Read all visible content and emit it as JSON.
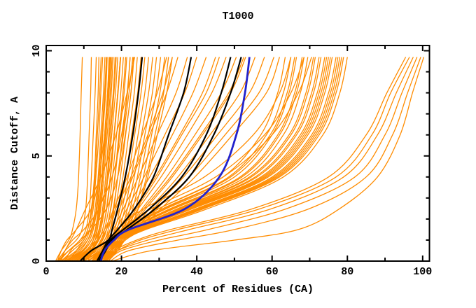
{
  "chart_data": {
    "type": "line",
    "title": "T1000",
    "xlabel": "Percent of Residues (CA)",
    "ylabel": "Distance Cutoff, A",
    "xlim": [
      0,
      101.8
    ],
    "ylim": [
      0,
      10.25
    ],
    "grid": false,
    "legend": "none",
    "frame": true,
    "x_major_ticks": [
      0,
      20,
      40,
      60,
      80,
      100
    ],
    "x_minor_ticks": [
      10,
      30,
      50,
      70,
      90
    ],
    "x_tick_labels": [
      "0",
      "20",
      "40",
      "60",
      "80",
      "100"
    ],
    "y_major_ticks": [
      0,
      5,
      10
    ],
    "y_minor_ticks": [
      1,
      2,
      3,
      4,
      6,
      7,
      8,
      9
    ],
    "y_tick_labels": [
      "0",
      "5",
      "10"
    ],
    "colors": {
      "ensemble": "#ff8c00",
      "highlight": "#000000",
      "reference": "#2222cc",
      "frame": "#000000",
      "background": "#ffffff"
    },
    "cutoff_grid": [
      0,
      0.5,
      1,
      1.5,
      2.5,
      4,
      6,
      8,
      9.7
    ],
    "series": {
      "ensemble_name": "model ensemble (percent of CA residues under cutoff)",
      "ensemble": [
        [
          2.5,
          4,
          6,
          7,
          8,
          8.6,
          9,
          9.3,
          9.6
        ],
        [
          3,
          5,
          8,
          9.5,
          10.5,
          11,
          11.4,
          11.8,
          12
        ],
        [
          3.5,
          6,
          9,
          10.5,
          11.5,
          12,
          12.5,
          13,
          13.3
        ],
        [
          4,
          7,
          10,
          11,
          12,
          12.8,
          13.3,
          13.8,
          14
        ],
        [
          4,
          8,
          10.5,
          11.5,
          12.5,
          13.2,
          14,
          14.5,
          15
        ],
        [
          5,
          9,
          11,
          12,
          13,
          13.8,
          14.5,
          15.2,
          15.6
        ],
        [
          5,
          9.5,
          11.5,
          12.5,
          13.5,
          14.3,
          15,
          15.8,
          16.2
        ],
        [
          6,
          10,
          12,
          13,
          14,
          14.8,
          15.5,
          16.3,
          16.8
        ],
        [
          6,
          10.5,
          12.5,
          13.5,
          14.5,
          15.3,
          16.2,
          17,
          17.5
        ],
        [
          7,
          11,
          13,
          14,
          15,
          15.8,
          16.8,
          17.8,
          18.3
        ],
        [
          7,
          11.5,
          13.5,
          14.5,
          15.5,
          16.4,
          17.4,
          18.4,
          19
        ],
        [
          8,
          12,
          14,
          15,
          16,
          17,
          18,
          19,
          19.7
        ],
        [
          8,
          12.5,
          14.5,
          15.5,
          16.6,
          17.6,
          18.7,
          19.8,
          20.5
        ],
        [
          9,
          13,
          15,
          16,
          17.2,
          18.3,
          19.5,
          20.7,
          21.4
        ],
        [
          9,
          13.5,
          15.5,
          16.5,
          17.8,
          19,
          20.3,
          21.6,
          22.3
        ],
        [
          10,
          14,
          16,
          17,
          18.4,
          19.7,
          21.1,
          22.5,
          23.2
        ],
        [
          10,
          14.5,
          16.5,
          17.6,
          19,
          20.4,
          21.9,
          23.4,
          24.2
        ],
        [
          11,
          15,
          17,
          18.2,
          19.6,
          21.1,
          22.7,
          24.3,
          25.2
        ],
        [
          11,
          15.5,
          17.5,
          18.8,
          20.2,
          21.8,
          23.5,
          25.2,
          26.2
        ],
        [
          12,
          16,
          18,
          19.4,
          20.9,
          22.6,
          24.4,
          26.2,
          27.2
        ],
        [
          12,
          16.5,
          18.5,
          20,
          21.6,
          23.4,
          25.3,
          27.2,
          28.3
        ],
        [
          13,
          17,
          19,
          20.6,
          22.3,
          24.2,
          26.2,
          28.2,
          29.3
        ],
        [
          13,
          17.5,
          19.5,
          21.2,
          23,
          25,
          27.1,
          29.2,
          30.4
        ],
        [
          14,
          18,
          20,
          21.8,
          23.7,
          25.8,
          28,
          30.2,
          31.5
        ],
        [
          14,
          18.5,
          20.5,
          22.4,
          24.4,
          26.6,
          28.9,
          31.2,
          32.5
        ],
        [
          12.5,
          17,
          20,
          22,
          24.5,
          27,
          29.5,
          32,
          33.5
        ],
        [
          3,
          6,
          9.5,
          11,
          12.2,
          13,
          13.6,
          14.2,
          14.6
        ],
        [
          4.5,
          8.5,
          11,
          12.2,
          13.3,
          14,
          14.8,
          15.5,
          16
        ],
        [
          5.5,
          9.8,
          12,
          13.2,
          14.2,
          15,
          15.9,
          16.7,
          17.2
        ],
        [
          6.5,
          10.8,
          13,
          14.2,
          15.3,
          16.2,
          17.1,
          18,
          18.6
        ],
        [
          7.5,
          11.8,
          13.8,
          15,
          16.1,
          17.1,
          18.1,
          19.1,
          19.8
        ],
        [
          8.5,
          12.8,
          14.8,
          16,
          17.1,
          18.2,
          19.3,
          20.4,
          21.1
        ],
        [
          3,
          4,
          5.5,
          8,
          12,
          14,
          15.5,
          16.5,
          17
        ],
        [
          4,
          5,
          7,
          10,
          14,
          16.5,
          18,
          19,
          19.7
        ],
        [
          5,
          6.5,
          9,
          12,
          16,
          19,
          21,
          22.5,
          23.3
        ],
        [
          10,
          12,
          13,
          13.6,
          14.3,
          15,
          15.7,
          16.3,
          16.7
        ],
        [
          11,
          12.5,
          13.5,
          14.2,
          15,
          15.8,
          16.6,
          17.3,
          17.8
        ],
        [
          9.5,
          11.5,
          12.5,
          13.1,
          13.8,
          14.4,
          15,
          15.6,
          16
        ],
        [
          6,
          8,
          10,
          11.5,
          14,
          17.5,
          20,
          21.5,
          22.3
        ],
        [
          12,
          14.5,
          16,
          17,
          18,
          19,
          20.5,
          22,
          23
        ],
        [
          3.5,
          5,
          6.5,
          8,
          10.5,
          14.5,
          18.5,
          21.5,
          23.5
        ],
        [
          9,
          13,
          15.5,
          17,
          19.5,
          23,
          27.5,
          32,
          35
        ],
        [
          10,
          14,
          16,
          17.8,
          20.5,
          24.5,
          29.5,
          34.5,
          37.5
        ],
        [
          11,
          14.5,
          16.5,
          18.5,
          21.5,
          26,
          31.5,
          36.8,
          40
        ],
        [
          12,
          15,
          17,
          19.2,
          22.5,
          27.5,
          33.5,
          39,
          42.5
        ],
        [
          12,
          15.5,
          17.5,
          20,
          23.5,
          29,
          35.5,
          41.5,
          45
        ],
        [
          13,
          16,
          18,
          20.8,
          24.5,
          30.5,
          37.5,
          44,
          47.8
        ],
        [
          13,
          16.5,
          18.5,
          21.5,
          25.5,
          32,
          39.5,
          46.5,
          50.5
        ],
        [
          14,
          17,
          19,
          22.2,
          26.5,
          33.5,
          41.5,
          49,
          53
        ],
        [
          14,
          17.5,
          19.5,
          23,
          27.5,
          35,
          43.5,
          51.5,
          55.5
        ],
        [
          15,
          18,
          20,
          23.8,
          28.5,
          36.5,
          45.5,
          54,
          58
        ],
        [
          15,
          18.5,
          20.5,
          24.5,
          29.5,
          38,
          47.5,
          56.5,
          60.5
        ],
        [
          15.5,
          19,
          21,
          25.2,
          30.5,
          39.5,
          49.5,
          58.5,
          62
        ],
        [
          10,
          13,
          14.5,
          16,
          18.5,
          22.5,
          27,
          31,
          33.5
        ],
        [
          8,
          11,
          13.5,
          15.5,
          18,
          21.5,
          25.5,
          29.5,
          32
        ],
        [
          13.5,
          16,
          18,
          20.5,
          24,
          29.5,
          36,
          42.5,
          46
        ],
        [
          14.5,
          17,
          19,
          22,
          26,
          33,
          41,
          48.5,
          52.5
        ],
        [
          13,
          15.5,
          17.5,
          20,
          30,
          47,
          57,
          61.5,
          63.5
        ],
        [
          13.5,
          16,
          18,
          20.5,
          31,
          48.5,
          58.5,
          63,
          65
        ],
        [
          14,
          16,
          18,
          21,
          32,
          50,
          60,
          64.5,
          66.5
        ],
        [
          14,
          16.5,
          18.5,
          21.5,
          33,
          51.5,
          61.5,
          66,
          68
        ],
        [
          14.5,
          16.5,
          19,
          22,
          34,
          53,
          63,
          67.5,
          69.5
        ],
        [
          14.5,
          17,
          19,
          22.5,
          35,
          54,
          64.5,
          69,
          71
        ],
        [
          15,
          17,
          19.5,
          23,
          36,
          55.5,
          66,
          70.5,
          72.5
        ],
        [
          15,
          17.5,
          19.5,
          23.5,
          37,
          57,
          67.5,
          72,
          74
        ],
        [
          15.5,
          17.5,
          20,
          24,
          38,
          58,
          68.5,
          73,
          75
        ],
        [
          15.5,
          18,
          20,
          24.5,
          39,
          59,
          69.5,
          74,
          76
        ],
        [
          16,
          18,
          20.5,
          25,
          40,
          60,
          70.5,
          75,
          77
        ],
        [
          16,
          18.5,
          20.5,
          25.5,
          41,
          61,
          71.5,
          76,
          78
        ],
        [
          16.5,
          18.5,
          21,
          26,
          42,
          62,
          72.5,
          77,
          79
        ],
        [
          16.5,
          19,
          21,
          26.5,
          43,
          63,
          73.5,
          78,
          80
        ],
        [
          14,
          16,
          18.5,
          21.5,
          33.5,
          52,
          62,
          66.5,
          68.5
        ],
        [
          15,
          17.5,
          20,
          24,
          38.5,
          58.5,
          69,
          73.5,
          75.5
        ],
        [
          14.5,
          17,
          19.5,
          23,
          36.5,
          56,
          66.5,
          71,
          73
        ],
        [
          16,
          18.5,
          21,
          25.5,
          41.5,
          61.5,
          72,
          76.5,
          78.5
        ],
        [
          13.5,
          16,
          18,
          21,
          31.5,
          49,
          59.5,
          64,
          66
        ],
        [
          15.5,
          18,
          20.5,
          25,
          40.5,
          60.5,
          71,
          75.5,
          77.5
        ],
        [
          14,
          16.5,
          19,
          22.5,
          35.5,
          54.5,
          65,
          69.5,
          71.5
        ],
        [
          15,
          17,
          19.5,
          23.5,
          37.5,
          57.5,
          68,
          72.5,
          74.5
        ],
        [
          13,
          15,
          17,
          19,
          26,
          42,
          55,
          62,
          65
        ],
        [
          14,
          16,
          18,
          20,
          28,
          45,
          58,
          65,
          68.5
        ],
        [
          15,
          17,
          19,
          21.5,
          30,
          47,
          60,
          67,
          70.5
        ],
        [
          15,
          18,
          24,
          33,
          55,
          75,
          85,
          90.5,
          95.5
        ],
        [
          16,
          19,
          27,
          38,
          60,
          79,
          88,
          93,
          97.5
        ],
        [
          16.5,
          20,
          30,
          43,
          64,
          82,
          90,
          94.5,
          98.5
        ],
        [
          17,
          22,
          35,
          50,
          70,
          85,
          92,
          96,
          99.5
        ],
        [
          17.5,
          28,
          50,
          67,
          78,
          88,
          94,
          97.3,
          100.3
        ],
        [
          16,
          19,
          25,
          35,
          57,
          77,
          86.5,
          91.5,
          96.5
        ]
      ],
      "highlight_name": "selected models (black)",
      "highlight": [
        [
          9,
          12,
          16.5,
          17.5,
          19,
          21,
          23,
          24.5,
          25.5
        ],
        [
          13.5,
          15,
          16.5,
          19,
          23.5,
          28.5,
          32.5,
          36.5,
          38.5
        ],
        [
          14,
          15.5,
          17,
          20.5,
          27.5,
          36,
          42.5,
          46.5,
          49
        ],
        [
          14.2,
          15.8,
          17.5,
          21.5,
          29,
          38,
          44.5,
          49,
          51.8
        ]
      ],
      "reference_name": "reference model (blue)",
      "reference": [
        [
          14.5,
          15.5,
          18,
          22,
          37,
          46,
          50.5,
          52.8,
          54
        ]
      ]
    }
  }
}
